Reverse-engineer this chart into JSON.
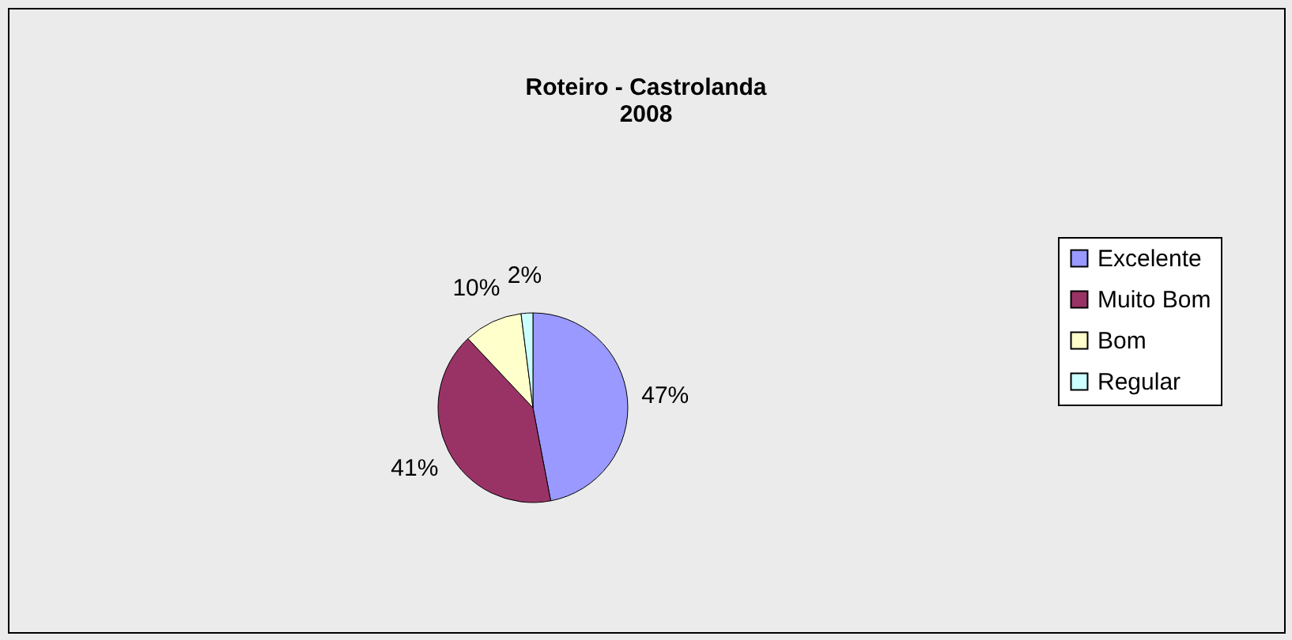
{
  "chart_data": {
    "type": "pie",
    "title": "Roteiro - Castrolanda\n2008",
    "categories": [
      "Excelente",
      "Muito Bom",
      "Bom",
      "Regular"
    ],
    "values": [
      47,
      41,
      10,
      2
    ],
    "value_labels": [
      "47%",
      "41%",
      "10%",
      "2%"
    ],
    "colors": [
      "#9999ff",
      "#993366",
      "#ffffcc",
      "#ccffff"
    ],
    "legend": "right"
  }
}
